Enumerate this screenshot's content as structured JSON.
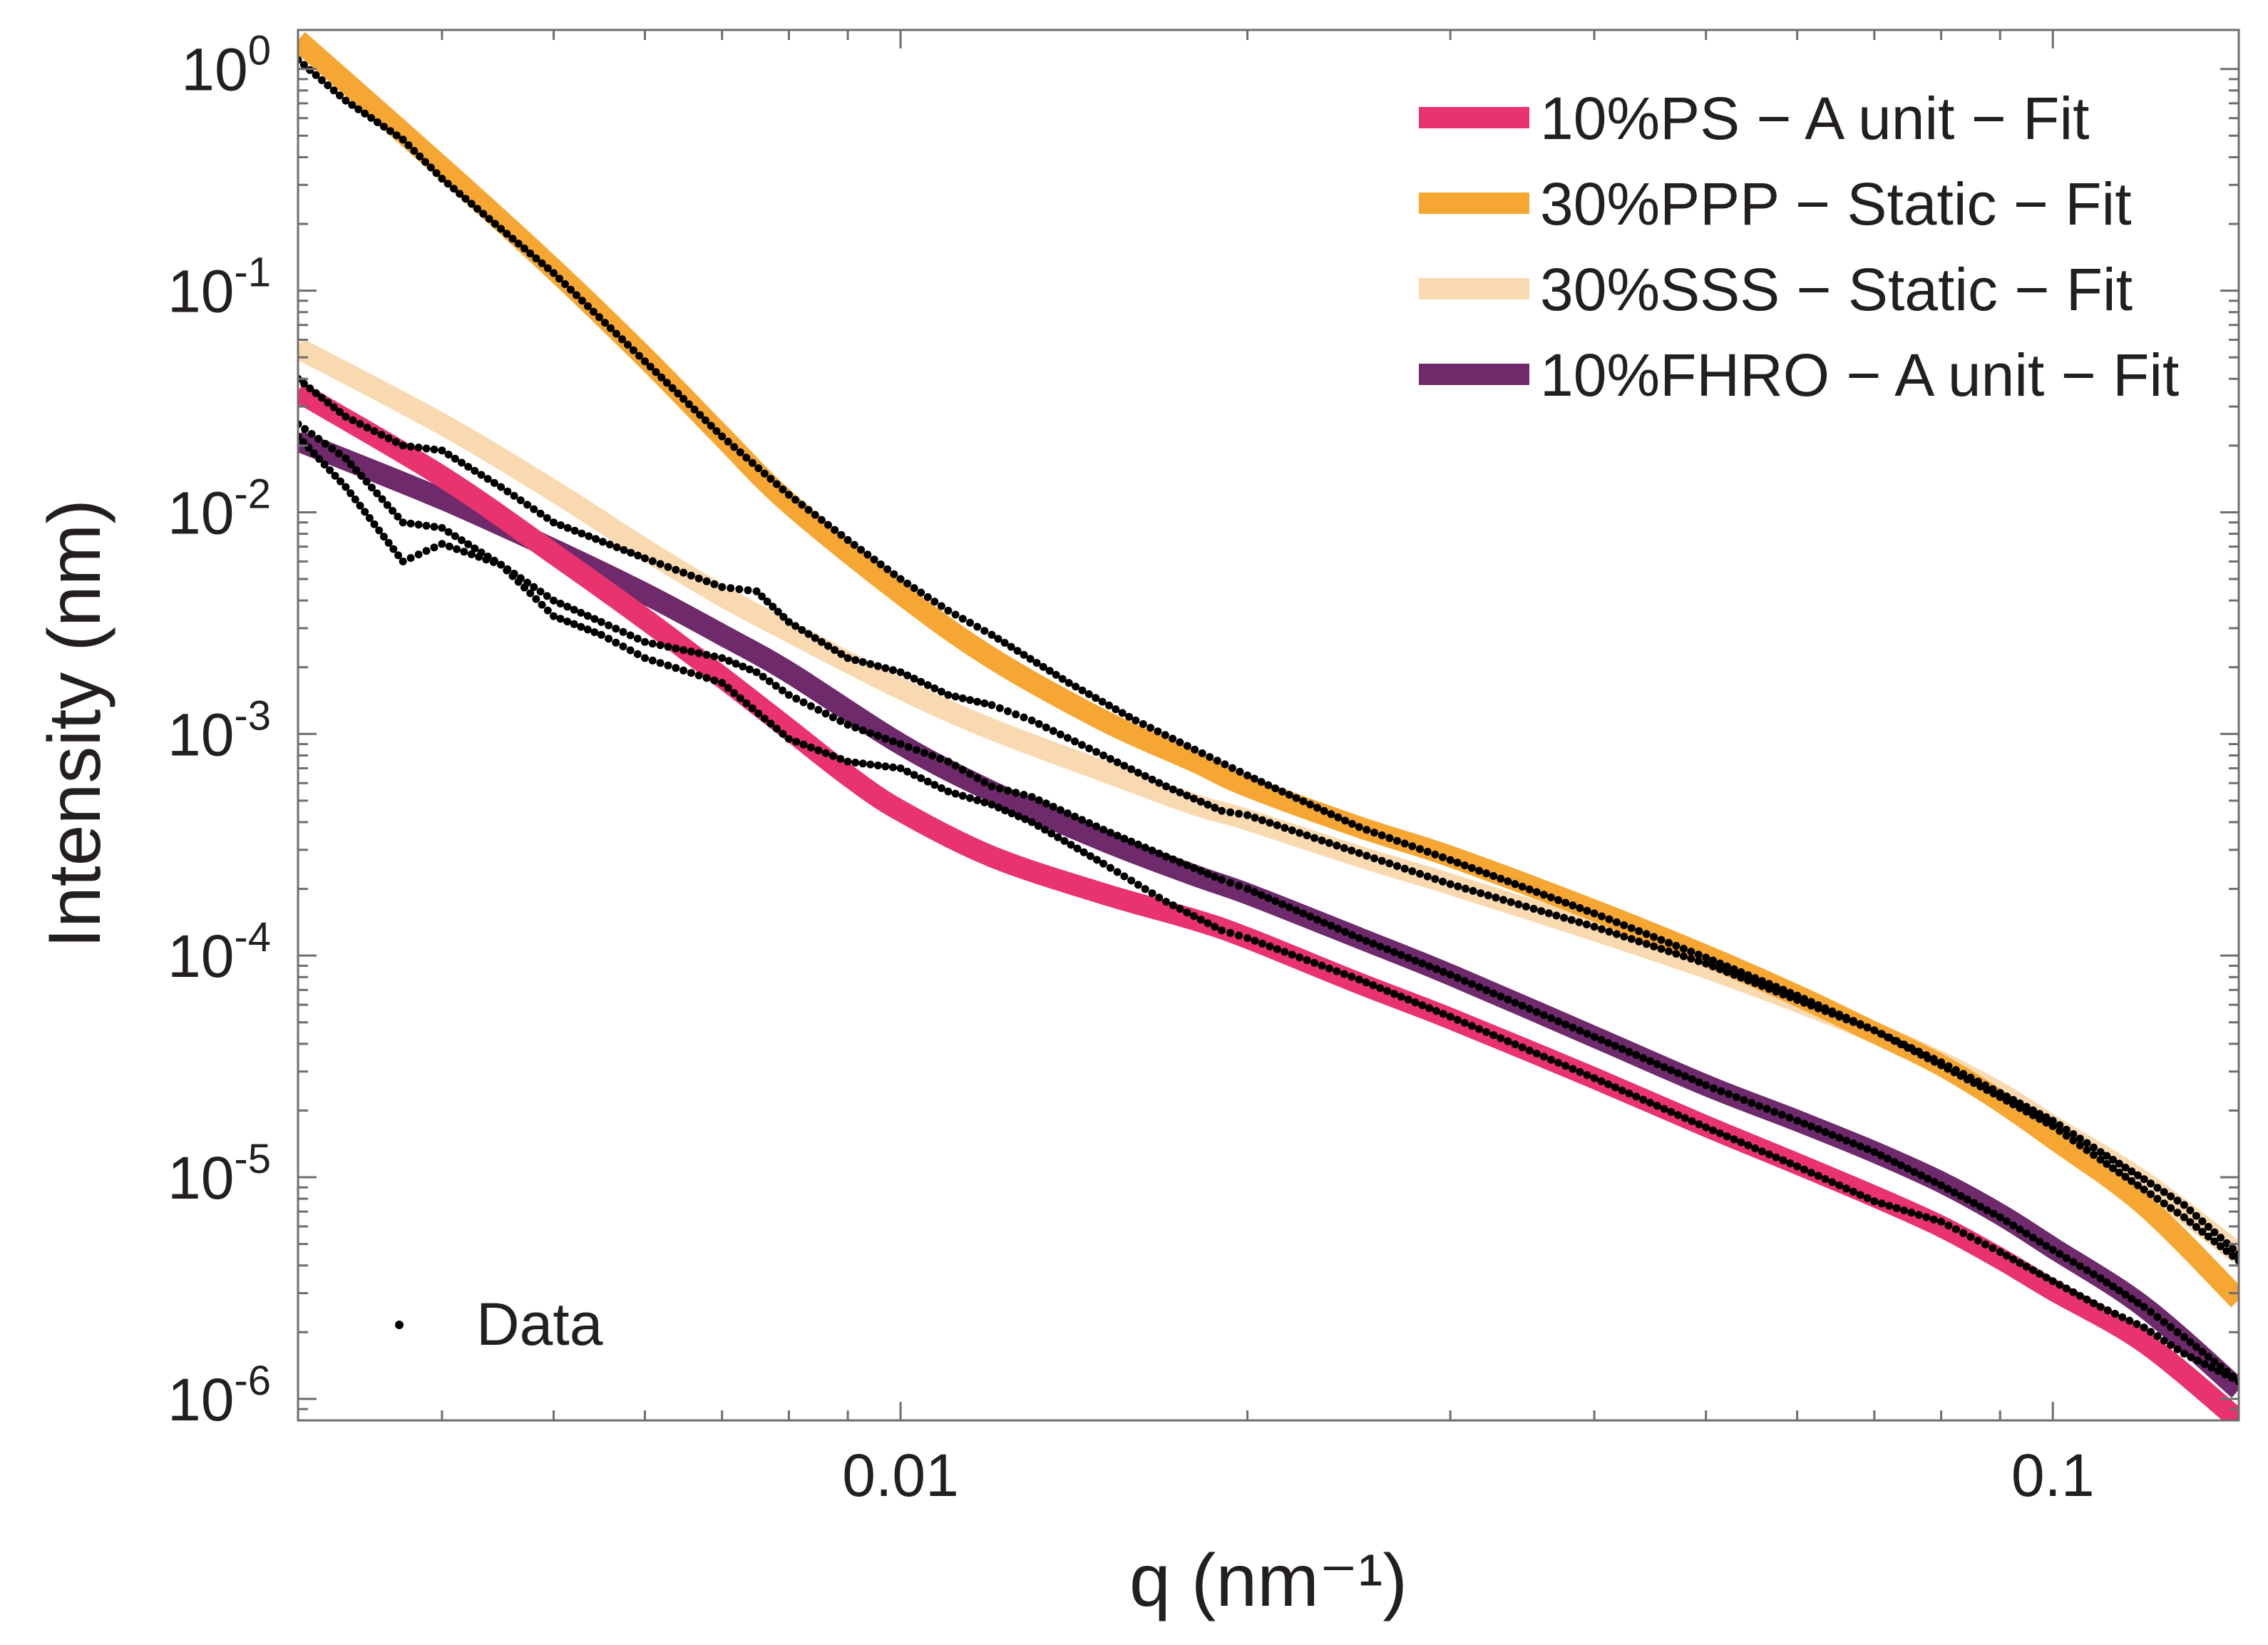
{
  "chart_data": {
    "type": "line",
    "title": "",
    "xlabel": "q (nm⁻¹)",
    "ylabel": "Intensity (nm)",
    "xscale": "log",
    "yscale": "log",
    "xlim": [
      0.003,
      0.145
    ],
    "ylim": [
      8e-07,
      1.5
    ],
    "legend_position": "top-right",
    "x_ticks": [
      {
        "value": 0.01,
        "label": "0.01"
      },
      {
        "value": 0.1,
        "label": "0.1"
      }
    ],
    "y_ticks": [
      {
        "value": 1,
        "base": "10",
        "exp": "0"
      },
      {
        "value": 0.1,
        "base": "10",
        "exp": "-1"
      },
      {
        "value": 0.01,
        "base": "10",
        "exp": "-2"
      },
      {
        "value": 0.001,
        "base": "10",
        "exp": "-3"
      },
      {
        "value": 0.0001,
        "base": "10",
        "exp": "-4"
      },
      {
        "value": 1e-05,
        "base": "10",
        "exp": "-5"
      },
      {
        "value": 1e-06,
        "base": "10",
        "exp": "-6"
      }
    ],
    "data_legend_label": "Data",
    "series": [
      {
        "name": "10%PS − A unit − Fit",
        "color": "#e8336e",
        "x": [
          0.003,
          0.004,
          0.005,
          0.006,
          0.007,
          0.008,
          0.009,
          0.01,
          0.012,
          0.015,
          0.018,
          0.02,
          0.025,
          0.03,
          0.04,
          0.05,
          0.06,
          0.07,
          0.08,
          0.09,
          0.1,
          0.12,
          0.145
        ],
        "y": [
          0.035,
          0.0145,
          0.0065,
          0.0033,
          0.0018,
          0.00105,
          0.00065,
          0.00045,
          0.00028,
          0.00019,
          0.000145,
          0.00012,
          7.5e-05,
          5.2e-05,
          2.8e-05,
          1.7e-05,
          1.15e-05,
          8.2e-06,
          6e-06,
          4.3e-06,
          3.1e-06,
          1.8e-06,
          8e-07
        ]
      },
      {
        "name": "30%PPP − Static − Fit",
        "color": "#f6a733",
        "x": [
          0.003,
          0.004,
          0.005,
          0.006,
          0.007,
          0.008,
          0.01,
          0.012,
          0.015,
          0.018,
          0.02,
          0.025,
          0.03,
          0.04,
          0.05,
          0.06,
          0.07,
          0.08,
          0.09,
          0.1,
          0.12,
          0.145
        ],
        "y": [
          1.35,
          0.36,
          0.125,
          0.05,
          0.022,
          0.011,
          0.0043,
          0.0022,
          0.00115,
          0.00075,
          0.00058,
          0.00038,
          0.00028,
          0.00016,
          0.0001,
          6.6e-05,
          4.5e-05,
          3.2e-05,
          2.2e-05,
          1.5e-05,
          7.5e-06,
          2.8e-06
        ]
      },
      {
        "name": "30%SSS − Static − Fit",
        "color": "#f9dab0",
        "x": [
          0.003,
          0.004,
          0.005,
          0.006,
          0.007,
          0.008,
          0.01,
          0.012,
          0.015,
          0.018,
          0.02,
          0.025,
          0.03,
          0.04,
          0.05,
          0.06,
          0.07,
          0.08,
          0.09,
          0.1,
          0.12,
          0.145
        ],
        "y": [
          0.055,
          0.025,
          0.0125,
          0.0068,
          0.0042,
          0.0029,
          0.0016,
          0.00105,
          0.00068,
          0.00048,
          0.00041,
          0.00028,
          0.00021,
          0.00013,
          8.8e-05,
          6.2e-05,
          4.5e-05,
          3.3e-05,
          2.4e-05,
          1.7e-05,
          9.5e-06,
          4.5e-06
        ]
      },
      {
        "name": "10%FHRO − A unit − Fit",
        "color": "#6e2a6b",
        "x": [
          0.003,
          0.004,
          0.005,
          0.006,
          0.007,
          0.008,
          0.01,
          0.012,
          0.015,
          0.018,
          0.02,
          0.025,
          0.03,
          0.04,
          0.05,
          0.06,
          0.07,
          0.08,
          0.09,
          0.1,
          0.12,
          0.145
        ],
        "y": [
          0.021,
          0.0115,
          0.0068,
          0.0043,
          0.0028,
          0.0019,
          0.0009,
          0.00055,
          0.00033,
          0.00023,
          0.00019,
          0.00012,
          8.2e-05,
          4.3e-05,
          2.6e-05,
          1.8e-05,
          1.3e-05,
          9.5e-06,
          6.8e-06,
          4.8e-06,
          2.6e-06,
          1.1e-06
        ]
      }
    ],
    "data_points": [
      {
        "series": "10%PS − A unit − Fit",
        "x": [
          0.003,
          0.0033,
          0.0037,
          0.004,
          0.0045,
          0.005,
          0.0055,
          0.006,
          0.007,
          0.008,
          0.009,
          0.01,
          0.011,
          0.012,
          0.013,
          0.015,
          0.017,
          0.019,
          0.02,
          0.025,
          0.03,
          0.04,
          0.05,
          0.06,
          0.07,
          0.08,
          0.09,
          0.1,
          0.11,
          0.12,
          0.13,
          0.145
        ],
        "y": [
          0.025,
          0.0175,
          0.009,
          0.0085,
          0.0058,
          0.0034,
          0.0028,
          0.0022,
          0.0017,
          0.00095,
          0.00075,
          0.0007,
          0.00055,
          0.00048,
          0.0004,
          0.00026,
          0.000175,
          0.00013,
          0.00012,
          7.8e-05,
          5.3e-05,
          2.8e-05,
          1.68e-05,
          1.12e-05,
          7.8e-06,
          6.3e-06,
          4.6e-06,
          3.4e-06,
          2.6e-06,
          2.1e-06,
          1.6e-06,
          1.2e-06
        ]
      },
      {
        "series": "30%PPP − Static − Fit",
        "x": [
          0.003,
          0.0033,
          0.0037,
          0.004,
          0.0045,
          0.005,
          0.006,
          0.007,
          0.008,
          0.009,
          0.01,
          0.011,
          0.012,
          0.014,
          0.016,
          0.018,
          0.02,
          0.025,
          0.03,
          0.04,
          0.05,
          0.06,
          0.07,
          0.08,
          0.09,
          0.1,
          0.11,
          0.12,
          0.13,
          0.145
        ],
        "y": [
          1.1,
          0.72,
          0.48,
          0.32,
          0.19,
          0.12,
          0.048,
          0.022,
          0.012,
          0.0075,
          0.005,
          0.0036,
          0.0028,
          0.0017,
          0.00115,
          0.00085,
          0.00065,
          0.00038,
          0.00027,
          0.000155,
          9.8e-05,
          6.6e-05,
          4.6e-05,
          3.2e-05,
          2.3e-05,
          1.7e-05,
          1.2e-05,
          8.8e-06,
          6.6e-06,
          4.2e-06
        ]
      },
      {
        "series": "30%SSS − Static − Fit",
        "x": [
          0.003,
          0.0033,
          0.0037,
          0.004,
          0.0045,
          0.005,
          0.006,
          0.007,
          0.0075,
          0.008,
          0.009,
          0.01,
          0.011,
          0.012,
          0.013,
          0.015,
          0.017,
          0.019,
          0.02,
          0.025,
          0.03,
          0.04,
          0.05,
          0.06,
          0.07,
          0.08,
          0.09,
          0.1,
          0.11,
          0.12,
          0.13,
          0.145
        ],
        "y": [
          0.04,
          0.027,
          0.02,
          0.019,
          0.013,
          0.009,
          0.0062,
          0.0046,
          0.0044,
          0.0032,
          0.0022,
          0.0019,
          0.0015,
          0.00135,
          0.00115,
          0.0008,
          0.00058,
          0.00045,
          0.00043,
          0.00029,
          0.00021,
          0.000135,
          9.2e-05,
          6.3e-05,
          4.6e-05,
          3.3e-05,
          2.4e-05,
          1.8e-05,
          1.3e-05,
          9.8e-06,
          7.5e-06,
          4.5e-06
        ]
      },
      {
        "series": "10%FHRO − A unit − Fit",
        "x": [
          0.003,
          0.0033,
          0.0037,
          0.004,
          0.0045,
          0.005,
          0.0055,
          0.006,
          0.007,
          0.0075,
          0.008,
          0.009,
          0.01,
          0.011,
          0.012,
          0.013,
          0.015,
          0.017,
          0.019,
          0.02,
          0.025,
          0.03,
          0.04,
          0.05,
          0.06,
          0.07,
          0.08,
          0.09,
          0.1,
          0.11,
          0.12,
          0.13,
          0.145
        ],
        "y": [
          0.022,
          0.013,
          0.006,
          0.0072,
          0.0058,
          0.004,
          0.0032,
          0.0026,
          0.0022,
          0.0019,
          0.0015,
          0.0011,
          0.0009,
          0.00075,
          0.00058,
          0.00052,
          0.00037,
          0.00028,
          0.00022,
          0.0002,
          0.00012,
          8.2e-05,
          4.3e-05,
          2.6e-05,
          1.8e-05,
          1.3e-05,
          9.2e-06,
          6.6e-06,
          4.7e-06,
          3.5e-06,
          2.6e-06,
          1.9e-06,
          1.2e-06
        ]
      }
    ]
  }
}
